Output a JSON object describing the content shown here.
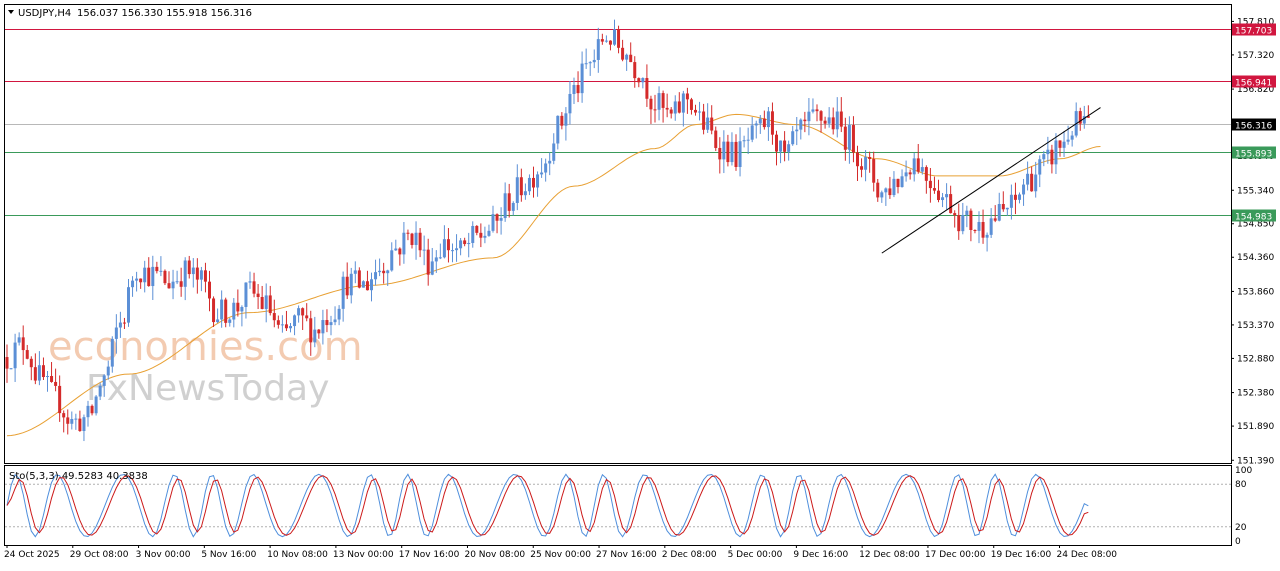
{
  "header": {
    "symbol_label": "USDJPY,H4",
    "ohlc_label": "156.037 156.330 155.918 156.316"
  },
  "watermark": {
    "line1": "economies.com",
    "line2": "FxNewsToday"
  },
  "colors": {
    "bull": "#5b8fd6",
    "bear": "#d42a2a",
    "ma": "#e8a033",
    "resistance": "#d1163f",
    "support": "#3a9a5a",
    "current": "#000000",
    "stoch_k": "#4f8fdc",
    "stoch_d": "#cc1a1a",
    "trendline": "#000000"
  },
  "chart_data": [
    {
      "type": "candlestick",
      "title": "USDJPY,H4",
      "y_ticks": [
        "157.810",
        "157.320",
        "156.820",
        "156.330",
        "155.840",
        "155.340",
        "154.850",
        "154.360",
        "153.860",
        "153.370",
        "152.880",
        "152.380",
        "151.890",
        "151.390"
      ],
      "ylim": [
        151.35,
        158.05
      ],
      "x_ticks": [
        "24 Oct 2025",
        "29 Oct 08:00",
        "3 Nov 00:00",
        "5 Nov 16:00",
        "10 Nov 08:00",
        "13 Nov 00:00",
        "17 Nov 16:00",
        "20 Nov 08:00",
        "25 Nov 00:00",
        "27 Nov 16:00",
        "2 Dec 08:00",
        "5 Dec 00:00",
        "9 Dec 16:00",
        "12 Dec 08:00",
        "17 Dec 00:00",
        "19 Dec 16:00",
        "24 Dec 08:00"
      ],
      "bar_count": 270,
      "series": [
        {
          "name": "Price",
          "anchors": [
            [
              0,
              152.9
            ],
            [
              4,
              153.1
            ],
            [
              8,
              152.6
            ],
            [
              12,
              152.3
            ],
            [
              16,
              151.95
            ],
            [
              20,
              152.0
            ],
            [
              24,
              152.6
            ],
            [
              28,
              153.4
            ],
            [
              32,
              154.2
            ],
            [
              36,
              154.1
            ],
            [
              40,
              154.0
            ],
            [
              44,
              154.15
            ],
            [
              48,
              154.0
            ],
            [
              52,
              153.55
            ],
            [
              56,
              153.6
            ],
            [
              60,
              153.85
            ],
            [
              64,
              153.65
            ],
            [
              68,
              153.2
            ],
            [
              72,
              153.45
            ],
            [
              76,
              153.3
            ],
            [
              80,
              153.55
            ],
            [
              84,
              154.0
            ],
            [
              88,
              153.95
            ],
            [
              92,
              154.2
            ],
            [
              96,
              154.5
            ],
            [
              100,
              154.7
            ],
            [
              104,
              154.3
            ],
            [
              108,
              154.55
            ],
            [
              112,
              154.45
            ],
            [
              116,
              154.65
            ],
            [
              120,
              154.8
            ],
            [
              124,
              155.2
            ],
            [
              128,
              155.45
            ],
            [
              132,
              155.7
            ],
            [
              136,
              156.25
            ],
            [
              140,
              156.8
            ],
            [
              144,
              157.2
            ],
            [
              148,
              157.6
            ],
            [
              152,
              157.4
            ],
            [
              156,
              157.1
            ],
            [
              160,
              156.6
            ],
            [
              164,
              156.4
            ],
            [
              168,
              156.7
            ],
            [
              172,
              156.3
            ],
            [
              176,
              156.0
            ],
            [
              180,
              155.85
            ],
            [
              184,
              156.1
            ],
            [
              188,
              156.35
            ],
            [
              192,
              155.8
            ],
            [
              196,
              156.2
            ],
            [
              200,
              156.4
            ],
            [
              204,
              156.35
            ],
            [
              208,
              156.1
            ],
            [
              212,
              155.7
            ],
            [
              216,
              155.3
            ],
            [
              220,
              155.5
            ],
            [
              224,
              155.8
            ],
            [
              228,
              155.5
            ],
            [
              232,
              155.2
            ],
            [
              236,
              154.9
            ],
            [
              240,
              154.8
            ],
            [
              244,
              154.95
            ],
            [
              248,
              155.1
            ],
            [
              252,
              155.5
            ],
            [
              256,
              155.7
            ],
            [
              260,
              156.0
            ],
            [
              264,
              156.3
            ]
          ]
        },
        {
          "name": "MA",
          "anchors": [
            [
              0,
              151.75
            ],
            [
              30,
              152.65
            ],
            [
              60,
              153.55
            ],
            [
              90,
              153.95
            ],
            [
              120,
              154.35
            ],
            [
              140,
              155.4
            ],
            [
              160,
              155.95
            ],
            [
              170,
              156.3
            ],
            [
              180,
              156.45
            ],
            [
              195,
              156.3
            ],
            [
              215,
              155.8
            ],
            [
              230,
              155.55
            ],
            [
              245,
              155.55
            ],
            [
              260,
              155.8
            ],
            [
              270,
              155.98
            ]
          ]
        }
      ],
      "levels": [
        {
          "label": "157.703",
          "value": 157.703,
          "kind": "resistance"
        },
        {
          "label": "156.941",
          "value": 156.941,
          "kind": "resistance"
        },
        {
          "label": "156.316",
          "value": 156.316,
          "kind": "current"
        },
        {
          "label": "155.893",
          "value": 155.893,
          "kind": "support"
        },
        {
          "label": "154.983",
          "value": 154.983,
          "kind": "support"
        }
      ],
      "trendline": {
        "from": [
          216,
          154.42
        ],
        "to": [
          270,
          156.55
        ]
      },
      "grid": false
    },
    {
      "type": "line",
      "title": "Sto(5,3,3) 49.5283 40.3838",
      "y_ticks": [
        "100",
        "80",
        "20",
        "0"
      ],
      "ylim": [
        0,
        100
      ],
      "levels": [
        80,
        20
      ],
      "series": [
        {
          "name": "%K",
          "value": 49.5283
        },
        {
          "name": "%D",
          "value": 40.3838
        }
      ]
    }
  ]
}
